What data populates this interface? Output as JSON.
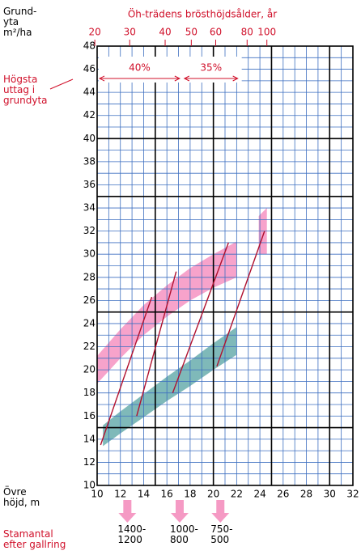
{
  "chart_data": {
    "type": "line",
    "title": "Öh-trädens brösthöjdsålder, år",
    "ylabel": [
      "Grund-",
      "yta",
      "m²/ha"
    ],
    "xlabel": [
      "Övre",
      "höjd, m"
    ],
    "side_note": [
      "Högsta",
      "uttag i",
      "grundyta"
    ],
    "stems_label": [
      "Stamantal",
      "efter gallring"
    ],
    "xlim": [
      10,
      32
    ],
    "ylim": [
      10,
      48
    ],
    "xticks": [
      10,
      12,
      14,
      16,
      18,
      20,
      22,
      24,
      26,
      28,
      30,
      32
    ],
    "yticks": [
      10,
      12,
      14,
      16,
      18,
      20,
      22,
      24,
      26,
      28,
      30,
      32,
      34,
      36,
      38,
      40,
      42,
      44,
      46,
      48
    ],
    "xgrid": [
      10,
      11,
      12,
      13,
      14,
      15,
      16,
      17,
      18,
      19,
      20,
      21,
      22,
      23,
      24,
      25,
      26,
      27,
      28,
      29,
      30,
      31,
      32
    ],
    "ygrid": [
      10,
      11,
      12,
      13,
      14,
      15,
      16,
      17,
      18,
      19,
      20,
      21,
      22,
      23,
      24,
      25,
      26,
      27,
      28,
      29,
      30,
      31,
      32,
      33,
      34,
      35,
      36,
      37,
      38,
      39,
      40,
      41,
      42,
      43,
      44,
      45,
      46,
      47,
      48
    ],
    "xmajor": [
      15,
      20,
      25,
      30
    ],
    "ymajor": [
      15,
      25,
      35,
      40
    ],
    "age_ticks": [
      {
        "value": 9.8,
        "label": "20"
      },
      {
        "value": 12.8,
        "label": "30"
      },
      {
        "value": 15.85,
        "label": "40"
      },
      {
        "value": 18.1,
        "label": "50"
      },
      {
        "value": 20.2,
        "label": "60"
      },
      {
        "value": 22.9,
        "label": "80"
      },
      {
        "value": 24.6,
        "label": "100"
      }
    ],
    "areas": [
      {
        "color": "#f7a3cb",
        "x": [
          10,
          12,
          14,
          16,
          18,
          20,
          22
        ],
        "upper": [
          21.2,
          23.5,
          25.6,
          27.3,
          28.8,
          30.0,
          31.1
        ],
        "lower": [
          18.8,
          21.0,
          23.0,
          24.6,
          26.0,
          27.1,
          28.0
        ]
      },
      {
        "color": "#7fb9b9",
        "x": [
          10.5,
          12,
          14,
          16,
          18,
          20,
          22
        ],
        "upper": [
          15.2,
          16.4,
          17.9,
          19.4,
          20.8,
          22.3,
          23.7
        ],
        "lower": [
          13.4,
          14.5,
          15.9,
          17.3,
          18.6,
          20.0,
          21.3
        ]
      },
      {
        "color": "#f7a3cb",
        "x": [
          23.9,
          24.6
        ],
        "upper": [
          33.3,
          34.0
        ],
        "lower": [
          30.0,
          30.0
        ]
      }
    ],
    "series": [
      {
        "color": "#b0102e",
        "x": [
          10.3,
          14.7
        ],
        "values": [
          13.5,
          26.3
        ]
      },
      {
        "color": "#b0102e",
        "x": [
          13.4,
          16.8
        ],
        "values": [
          16.0,
          28.5
        ]
      },
      {
        "color": "#b0102e",
        "x": [
          16.5,
          21.3
        ],
        "values": [
          18.0,
          31.0
        ]
      },
      {
        "color": "#b0102e",
        "x": [
          20.3,
          24.4
        ],
        "values": [
          20.3,
          32.0
        ]
      }
    ],
    "annotations": [
      {
        "text": "40%",
        "x": [
          10,
          17.3
        ]
      },
      {
        "text": "35%",
        "x": [
          17.3,
          22.3
        ]
      }
    ],
    "stems": [
      {
        "text": [
          "1400-",
          "1200"
        ],
        "x": 12.6
      },
      {
        "text": [
          "1000-",
          "800"
        ],
        "x": 17.1
      },
      {
        "text": [
          "750-",
          "500"
        ],
        "x": 20.6
      }
    ]
  }
}
